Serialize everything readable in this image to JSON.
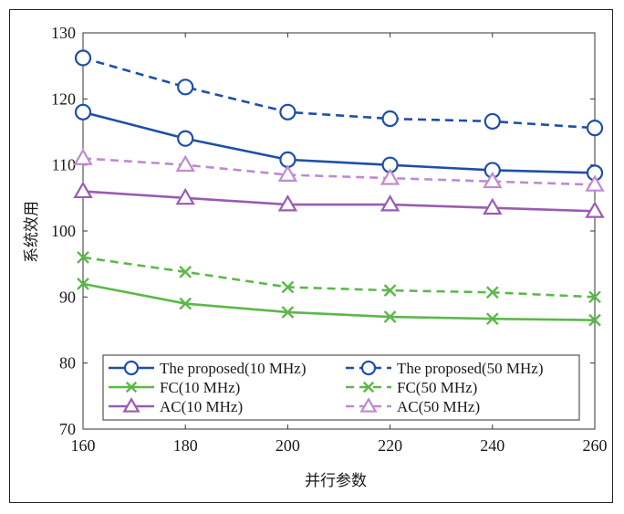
{
  "chart_data": {
    "type": "line",
    "xlabel": "并行参数",
    "ylabel": "系统效用",
    "x": [
      160,
      180,
      200,
      220,
      240,
      260
    ],
    "xlim": [
      160,
      260
    ],
    "ylim": [
      70,
      130
    ],
    "xticks": [
      "160",
      "180",
      "200",
      "220",
      "240",
      "260"
    ],
    "yticks": [
      "70",
      "80",
      "90",
      "100",
      "110",
      "120",
      "130"
    ],
    "grid": false,
    "legend_position": "bottom-left",
    "series": [
      {
        "name": "The proposed(10 MHz)",
        "values": [
          118,
          114,
          110.8,
          110,
          109.2,
          108.8
        ],
        "color": "#1f4fa8",
        "dash": "solid",
        "marker": "circle"
      },
      {
        "name": "The proposed(50 MHz)",
        "values": [
          126.2,
          121.8,
          118,
          117,
          116.6,
          115.6
        ],
        "color": "#1f4fa8",
        "dash": "dashed",
        "marker": "circle"
      },
      {
        "name": "FC(10 MHz)",
        "values": [
          92,
          89,
          87.7,
          87,
          86.7,
          86.5
        ],
        "color": "#5cb84a",
        "dash": "solid",
        "marker": "x"
      },
      {
        "name": "FC(50 MHz)",
        "values": [
          96,
          93.8,
          91.5,
          91,
          90.7,
          90
        ],
        "color": "#5cb84a",
        "dash": "dashed",
        "marker": "x"
      },
      {
        "name": "AC(10 MHz)",
        "values": [
          106,
          105,
          104,
          104,
          103.5,
          103
        ],
        "color": "#9b5bb3",
        "dash": "solid",
        "marker": "triangle"
      },
      {
        "name": "AC(50 MHz)",
        "values": [
          111,
          110,
          108.5,
          108,
          107.5,
          107
        ],
        "color": "#c08ad0",
        "dash": "dashed",
        "marker": "triangle"
      }
    ]
  }
}
